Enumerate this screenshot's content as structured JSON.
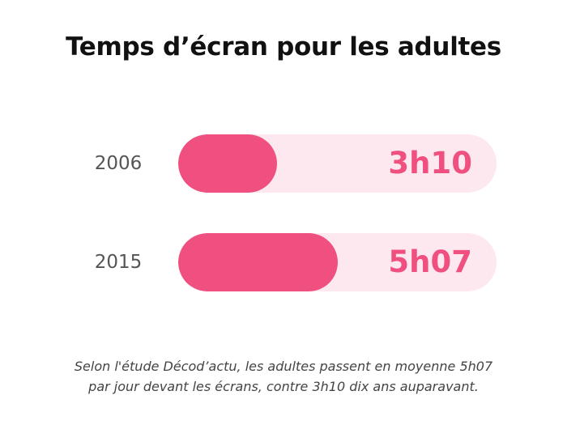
{
  "title": "Temps d’écran pour les adultes",
  "caption": {
    "line1": "Selon l'étude Décod’actu, les adultes passent en moyenne 5h07",
    "line2": "par jour devant les écrans, contre 3h10 dix ans auparavant."
  },
  "colors": {
    "accent": "#ef5080",
    "track": "#fde8ef",
    "label": "#555555",
    "title": "#111111"
  },
  "chart_data": {
    "type": "bar",
    "orientation": "horizontal",
    "title": "Temps d’écran pour les adultes",
    "categories": [
      "2006",
      "2015"
    ],
    "value_labels": [
      "3h10",
      "5h07"
    ],
    "values": [
      190,
      307
    ],
    "fill_fraction": [
      0.31,
      0.5
    ],
    "grid": false,
    "legend": "none"
  }
}
